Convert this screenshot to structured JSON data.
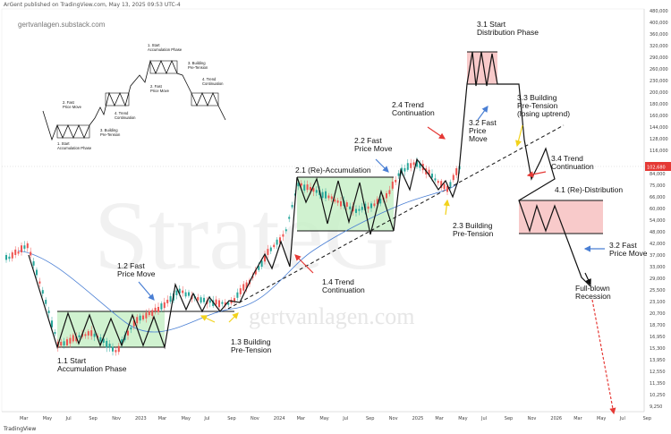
{
  "header": "ArGent published on TradingView.com, May 13, 2025 09:53 UTC-4",
  "footer": "TradingView",
  "blog_label": "gertvanlagen.substack.com",
  "watermark": {
    "brand": "StrateG",
    "site": "gertvanlagen.com"
  },
  "last_price": "102,680",
  "colors": {
    "accumulation": "#c8f0c8",
    "distribution": "#f7c4c4",
    "arrow_red": "#e53935",
    "arrow_blue": "#4a7fd4",
    "arrow_yellow": "#f2d21b",
    "ma": "#4a7fd4",
    "candle_up": "#26a69a",
    "candle_down": "#ef5350"
  },
  "chart_data": {
    "type": "candlestick",
    "title": "",
    "xlabel": "",
    "ylabel": "",
    "y_scale": "log",
    "x_ticks": [
      "Mar",
      "May",
      "Jul",
      "Sep",
      "Nov",
      "2023",
      "Mar",
      "May",
      "Jul",
      "Sep",
      "Nov",
      "2024",
      "Mar",
      "May",
      "Jul",
      "Sep",
      "Nov",
      "2025",
      "Mar",
      "May",
      "Jul",
      "Sep",
      "Nov",
      "2026",
      "Mar",
      "May",
      "Jul",
      "Sep"
    ],
    "y_ticks": [
      "480,000",
      "400,000",
      "360,000",
      "320,000",
      "290,000",
      "260,000",
      "230,000",
      "200,000",
      "180,000",
      "160,000",
      "144,000",
      "128,000",
      "116,000",
      "102,680",
      "84,000",
      "75,000",
      "66,000",
      "60,000",
      "54,000",
      "48,000",
      "42,000",
      "37,000",
      "33,000",
      "29,000",
      "25,500",
      "23,100",
      "20,700",
      "18,700",
      "16,950",
      "15,300",
      "13,950",
      "12,550",
      "11,350",
      "10,250",
      "9,250"
    ],
    "annotations": [
      {
        "key": "a11",
        "lines": [
          "1.1 Start",
          "Accumulation Phase"
        ]
      },
      {
        "key": "a12",
        "lines": [
          "1.2 Fast",
          "Price Move"
        ]
      },
      {
        "key": "a13",
        "lines": [
          "1.3 Building",
          "Pre-Tension"
        ]
      },
      {
        "key": "a14",
        "lines": [
          "1.4 Trend",
          "Continuation"
        ]
      },
      {
        "key": "a21",
        "lines": [
          "2.1 (Re)-Accumulation"
        ]
      },
      {
        "key": "a22",
        "lines": [
          "2.2 Fast",
          "Price Move"
        ]
      },
      {
        "key": "a23",
        "lines": [
          "2.3 Building",
          "Pre-Tension"
        ]
      },
      {
        "key": "a24",
        "lines": [
          "2.4 Trend",
          "Continuation"
        ]
      },
      {
        "key": "a31",
        "lines": [
          "3.1 Start",
          "Distribution Phase"
        ]
      },
      {
        "key": "a32",
        "lines": [
          "3.2 Fast",
          "Price",
          "Move"
        ]
      },
      {
        "key": "a33",
        "lines": [
          "3.3 Building",
          "Pre-Tension",
          "(losing uptrend)"
        ]
      },
      {
        "key": "a34",
        "lines": [
          "3.4 Trend",
          "Continuation"
        ]
      },
      {
        "key": "a41",
        "lines": [
          "4.1 (Re)-Distribution"
        ]
      },
      {
        "key": "a32b",
        "lines": [
          "3.2 Fast",
          "Price Move"
        ]
      },
      {
        "key": "afbr",
        "lines": [
          "Full-blown",
          "Recession"
        ]
      }
    ],
    "mini_labels": [
      {
        "key": "m1",
        "lines": [
          "1. Start",
          "Accumulation Phase"
        ]
      },
      {
        "key": "m2",
        "lines": [
          "2. Fast",
          "Price Move"
        ]
      },
      {
        "key": "m3",
        "lines": [
          "3. Building",
          "Pre-Tension"
        ]
      },
      {
        "key": "m4",
        "lines": [
          "4. Trend",
          "Continuation"
        ]
      },
      {
        "key": "m5",
        "lines": [
          "1. Start",
          "Accumulation Phase"
        ]
      },
      {
        "key": "m6",
        "lines": [
          "2. Fast",
          "Price Move"
        ]
      },
      {
        "key": "m7",
        "lines": [
          "3. Building",
          "Pre-Tension"
        ]
      },
      {
        "key": "m8",
        "lines": [
          "4. Trend",
          "Continuation"
        ]
      }
    ]
  }
}
